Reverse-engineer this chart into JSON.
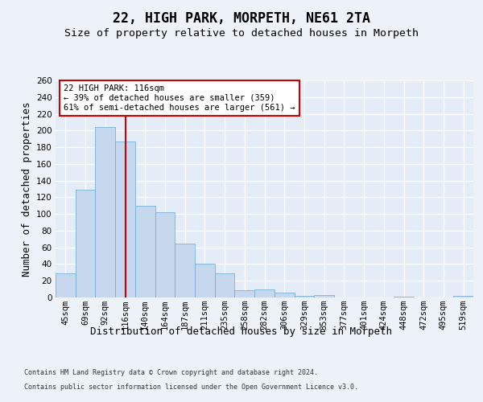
{
  "title": "22, HIGH PARK, MORPETH, NE61 2TA",
  "subtitle": "Size of property relative to detached houses in Morpeth",
  "xlabel": "Distribution of detached houses by size in Morpeth",
  "ylabel": "Number of detached properties",
  "categories": [
    "45sqm",
    "69sqm",
    "92sqm",
    "116sqm",
    "140sqm",
    "164sqm",
    "187sqm",
    "211sqm",
    "235sqm",
    "258sqm",
    "282sqm",
    "306sqm",
    "329sqm",
    "353sqm",
    "377sqm",
    "401sqm",
    "424sqm",
    "448sqm",
    "472sqm",
    "495sqm",
    "519sqm"
  ],
  "values": [
    29,
    129,
    204,
    187,
    110,
    102,
    65,
    40,
    29,
    9,
    10,
    6,
    2,
    3,
    0,
    0,
    0,
    1,
    0,
    0,
    2
  ],
  "bar_color": "#c5d8ed",
  "bar_edge_color": "#7ab0d4",
  "vline_index": 3,
  "annotation_line1": "22 HIGH PARK: 116sqm",
  "annotation_line2": "← 39% of detached houses are smaller (359)",
  "annotation_line3": "61% of semi-detached houses are larger (561) →",
  "ylim": [
    0,
    260
  ],
  "yticks": [
    0,
    20,
    40,
    60,
    80,
    100,
    120,
    140,
    160,
    180,
    200,
    220,
    240,
    260
  ],
  "background_color": "#edf2f9",
  "plot_bg_color": "#e4ecf7",
  "grid_color": "#ffffff",
  "footer1": "Contains HM Land Registry data © Crown copyright and database right 2024.",
  "footer2": "Contains public sector information licensed under the Open Government Licence v3.0."
}
